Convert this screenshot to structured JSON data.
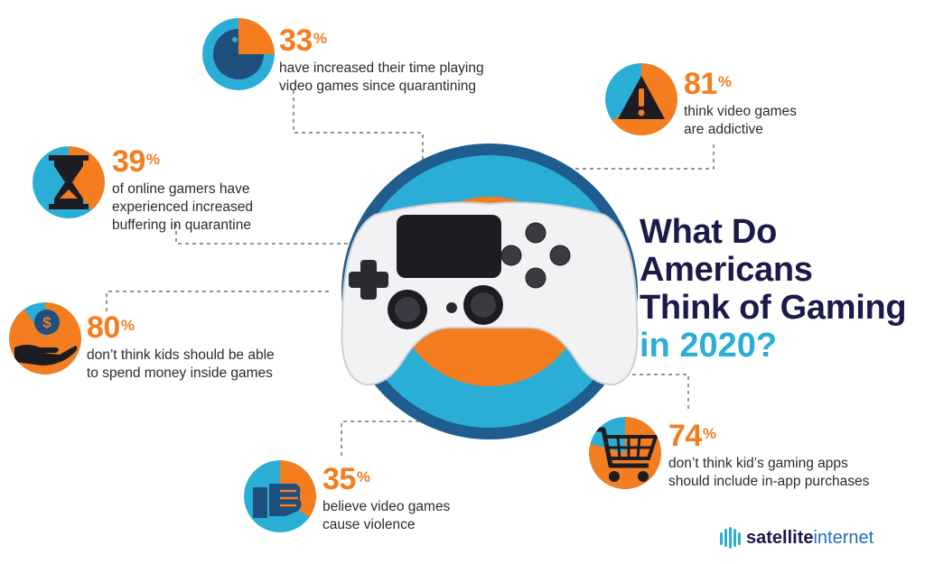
{
  "title": {
    "line1": "What Do",
    "line2": "Americans",
    "line3": "Think of Gaming",
    "line4": "in 2020?"
  },
  "stats": [
    {
      "value": "33",
      "desc": [
        "have increased their time playing",
        "video games since quarantining"
      ],
      "icon": "pacman-pie-icon"
    },
    {
      "value": "81",
      "desc": [
        "think video games",
        "are addictive"
      ],
      "icon": "warning-icon"
    },
    {
      "value": "39",
      "desc": [
        "of online gamers have",
        "experienced increased",
        "buffering in quarantine"
      ],
      "icon": "hourglass-icon"
    },
    {
      "value": "80",
      "desc": [
        "don’t think kids should be able",
        "to spend money inside games"
      ],
      "icon": "money-hand-icon"
    },
    {
      "value": "35",
      "desc": [
        "believe video games",
        "cause violence"
      ],
      "icon": "fist-icon"
    },
    {
      "value": "74",
      "desc": [
        "don’t think kid’s gaming apps",
        "should include in-app purchases"
      ],
      "icon": "shopping-cart-icon"
    }
  ],
  "percent_sign": "%",
  "brand": {
    "part1": "satellite",
    "part2": "internet"
  },
  "colors": {
    "orange": "#f47d20",
    "teal": "#2aaed6",
    "navy": "#1b1a48",
    "blue": "#1f5d8f"
  }
}
